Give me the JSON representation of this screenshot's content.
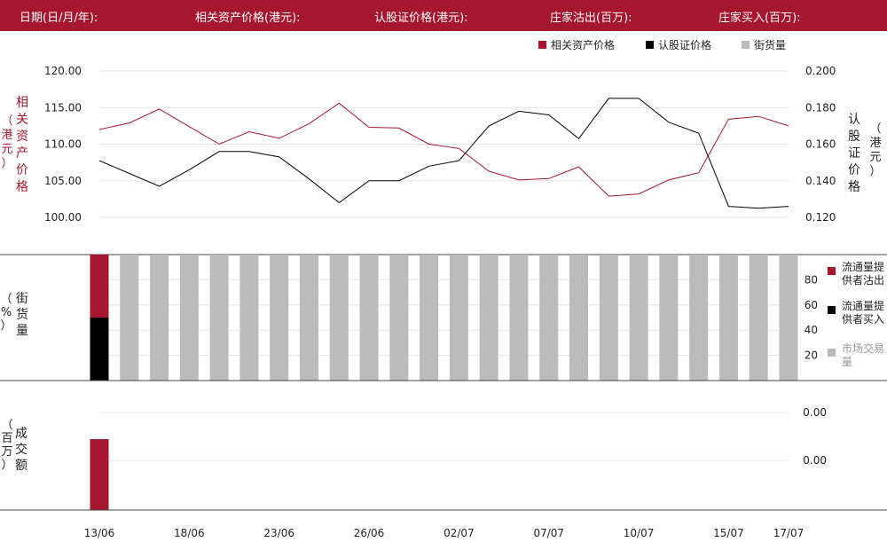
{
  "header": {
    "date_label": "日期(日/月/年):",
    "underlying_label": "相关资产价格(港元):",
    "warrant_label": "认股证价格(港元):",
    "sell_label": "庄家沽出(百万):",
    "buy_label": "庄家买入(百万):"
  },
  "colors": {
    "underlying": "#a6172f",
    "warrant": "#000000",
    "market": "#bbbbbb",
    "grid": "#e6e6e6"
  },
  "icons": {
    "legend_marker": "square"
  },
  "chart_data": [
    {
      "type": "line",
      "legend": [
        "相关资产价格",
        "认股证价格",
        "街货量"
      ],
      "legend_position": "top-right",
      "y_left_label": "相关资产价格（港元）",
      "y_right_label": "认股证价格（港元）",
      "y_left_ticks": [
        "100.00",
        "105.00",
        "110.00",
        "115.00",
        "120.00"
      ],
      "y_right_ticks": [
        "0.120",
        "0.140",
        "0.160",
        "0.180",
        "0.200"
      ],
      "y_left_range": [
        100,
        120
      ],
      "y_right_range": [
        0.12,
        0.2
      ],
      "grid": true,
      "series": [
        {
          "name": "相关资产价格",
          "axis": "left",
          "values": [
            112.0,
            112.9,
            114.8,
            112.4,
            110.0,
            111.7,
            110.8,
            112.8,
            115.6,
            112.3,
            112.2,
            110.0,
            109.4,
            106.3,
            105.1,
            105.3,
            106.9,
            102.9,
            103.2,
            105.1,
            106.1,
            113.4,
            113.8,
            112.5
          ]
        },
        {
          "name": "认股证价格",
          "axis": "right",
          "values": [
            0.151,
            0.144,
            0.137,
            0.146,
            0.156,
            0.156,
            0.153,
            0.141,
            0.128,
            0.14,
            0.14,
            0.148,
            0.151,
            0.17,
            0.178,
            0.176,
            0.163,
            0.185,
            0.185,
            0.172,
            0.166,
            0.126,
            0.125,
            0.126
          ]
        }
      ]
    },
    {
      "type": "bar",
      "ylabel": "街货量（%）",
      "y_ticks": [
        "20",
        "40",
        "60",
        "80"
      ],
      "y_range": [
        0,
        100
      ],
      "legend": [
        "流通量提供者沽出",
        "流通量提供者买入",
        "市场交易量"
      ],
      "legend_position": "right",
      "series": [
        {
          "name": "流通量提供者沽出",
          "values": [
            50,
            0,
            0,
            0,
            0,
            0,
            0,
            0,
            0,
            0,
            0,
            0,
            0,
            0,
            0,
            0,
            0,
            0,
            0,
            0,
            0,
            0,
            0,
            0
          ]
        },
        {
          "name": "流通量提供者买入",
          "values": [
            50,
            0,
            0,
            0,
            0,
            0,
            0,
            0,
            0,
            0,
            0,
            0,
            0,
            0,
            0,
            0,
            0,
            0,
            0,
            0,
            0,
            0,
            0,
            0
          ]
        },
        {
          "name": "市场交易量",
          "values": [
            0,
            100,
            100,
            100,
            100,
            100,
            100,
            100,
            100,
            100,
            100,
            100,
            100,
            100,
            100,
            100,
            100,
            100,
            100,
            100,
            100,
            100,
            100,
            100
          ]
        }
      ]
    },
    {
      "type": "bar",
      "ylabel": "成交额（百万）",
      "y_ticks": [
        "0.00",
        "0.00"
      ],
      "series": [
        {
          "name": "成交额",
          "values": [
            1,
            0,
            0,
            0,
            0,
            0,
            0,
            0,
            0,
            0,
            0,
            0,
            0,
            0,
            0,
            0,
            0,
            0,
            0,
            0,
            0,
            0,
            0,
            0
          ]
        }
      ]
    }
  ],
  "x_axis": {
    "tick_labels": [
      "13/06",
      "18/06",
      "23/06",
      "26/06",
      "02/07",
      "07/07",
      "10/07",
      "15/07",
      "17/07"
    ],
    "tick_index": [
      0,
      3,
      6,
      9,
      12,
      15,
      18,
      21,
      23
    ]
  }
}
